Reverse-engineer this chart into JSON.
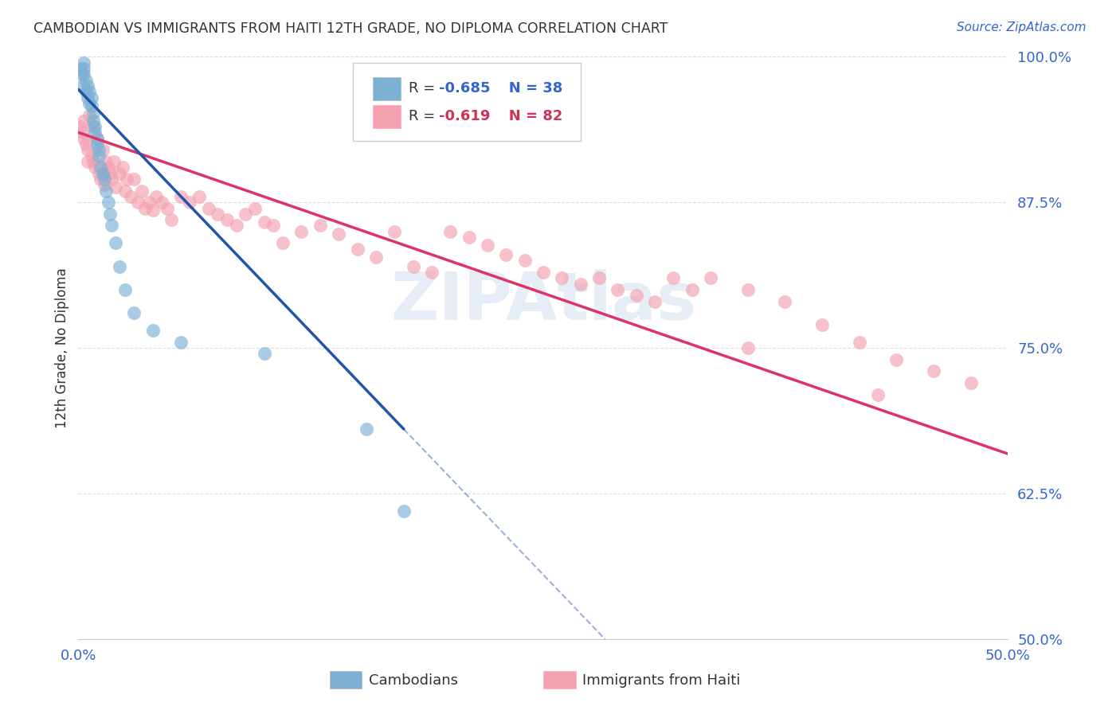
{
  "title": "CAMBODIAN VS IMMIGRANTS FROM HAITI 12TH GRADE, NO DIPLOMA CORRELATION CHART",
  "source": "Source: ZipAtlas.com",
  "ylabel": "12th Grade, No Diploma",
  "xmin": 0.0,
  "xmax": 0.5,
  "ymin": 0.5,
  "ymax": 1.0,
  "ytick_labels_right": [
    "100.0%",
    "87.5%",
    "75.0%",
    "62.5%",
    "50.0%"
  ],
  "ytick_vals_right": [
    1.0,
    0.875,
    0.75,
    0.625,
    0.5
  ],
  "blue_color": "#7BAFD4",
  "pink_color": "#F4A0B0",
  "blue_line_color": "#2255AA",
  "pink_line_color": "#DD3366",
  "watermark": "ZIPAtlas",
  "background_color": "#FFFFFF",
  "grid_color": "#DDDDDD",
  "blue_r_val": "-0.685",
  "blue_n_val": "38",
  "pink_r_val": "-0.619",
  "pink_n_val": "82",
  "text_blue": "#3366CC",
  "text_pink": "#CC3355",
  "text_dark": "#333333",
  "cambodian_x": [
    0.001,
    0.002,
    0.002,
    0.003,
    0.003,
    0.003,
    0.004,
    0.004,
    0.005,
    0.005,
    0.006,
    0.006,
    0.007,
    0.007,
    0.008,
    0.008,
    0.009,
    0.009,
    0.01,
    0.01,
    0.011,
    0.011,
    0.012,
    0.013,
    0.014,
    0.015,
    0.016,
    0.017,
    0.018,
    0.02,
    0.022,
    0.025,
    0.03,
    0.04,
    0.055,
    0.1,
    0.155,
    0.175
  ],
  "cambodian_y": [
    0.99,
    0.985,
    0.975,
    0.995,
    0.99,
    0.985,
    0.97,
    0.98,
    0.975,
    0.965,
    0.96,
    0.97,
    0.965,
    0.958,
    0.952,
    0.945,
    0.94,
    0.935,
    0.93,
    0.925,
    0.92,
    0.915,
    0.905,
    0.9,
    0.895,
    0.885,
    0.875,
    0.865,
    0.855,
    0.84,
    0.82,
    0.8,
    0.78,
    0.765,
    0.755,
    0.745,
    0.68,
    0.61
  ],
  "haiti_x": [
    0.001,
    0.002,
    0.003,
    0.003,
    0.004,
    0.005,
    0.005,
    0.006,
    0.007,
    0.008,
    0.008,
    0.009,
    0.01,
    0.011,
    0.012,
    0.013,
    0.014,
    0.015,
    0.016,
    0.017,
    0.018,
    0.019,
    0.02,
    0.022,
    0.024,
    0.025,
    0.026,
    0.028,
    0.03,
    0.032,
    0.034,
    0.036,
    0.038,
    0.04,
    0.042,
    0.045,
    0.048,
    0.05,
    0.055,
    0.06,
    0.065,
    0.07,
    0.075,
    0.08,
    0.085,
    0.09,
    0.095,
    0.1,
    0.105,
    0.11,
    0.12,
    0.13,
    0.14,
    0.15,
    0.16,
    0.17,
    0.18,
    0.19,
    0.2,
    0.21,
    0.22,
    0.23,
    0.24,
    0.25,
    0.26,
    0.27,
    0.28,
    0.29,
    0.3,
    0.31,
    0.32,
    0.33,
    0.34,
    0.36,
    0.38,
    0.4,
    0.42,
    0.44,
    0.46,
    0.48,
    0.36,
    0.43
  ],
  "haiti_y": [
    0.94,
    0.935,
    0.945,
    0.93,
    0.925,
    0.92,
    0.91,
    0.95,
    0.915,
    0.91,
    0.94,
    0.905,
    0.93,
    0.9,
    0.895,
    0.92,
    0.89,
    0.91,
    0.905,
    0.9,
    0.895,
    0.91,
    0.888,
    0.9,
    0.905,
    0.885,
    0.895,
    0.88,
    0.895,
    0.875,
    0.885,
    0.87,
    0.875,
    0.868,
    0.88,
    0.875,
    0.87,
    0.86,
    0.88,
    0.875,
    0.88,
    0.87,
    0.865,
    0.86,
    0.855,
    0.865,
    0.87,
    0.858,
    0.855,
    0.84,
    0.85,
    0.855,
    0.848,
    0.835,
    0.828,
    0.85,
    0.82,
    0.815,
    0.85,
    0.845,
    0.838,
    0.83,
    0.825,
    0.815,
    0.81,
    0.805,
    0.81,
    0.8,
    0.795,
    0.79,
    0.81,
    0.8,
    0.81,
    0.8,
    0.79,
    0.77,
    0.755,
    0.74,
    0.73,
    0.72,
    0.75,
    0.71
  ]
}
